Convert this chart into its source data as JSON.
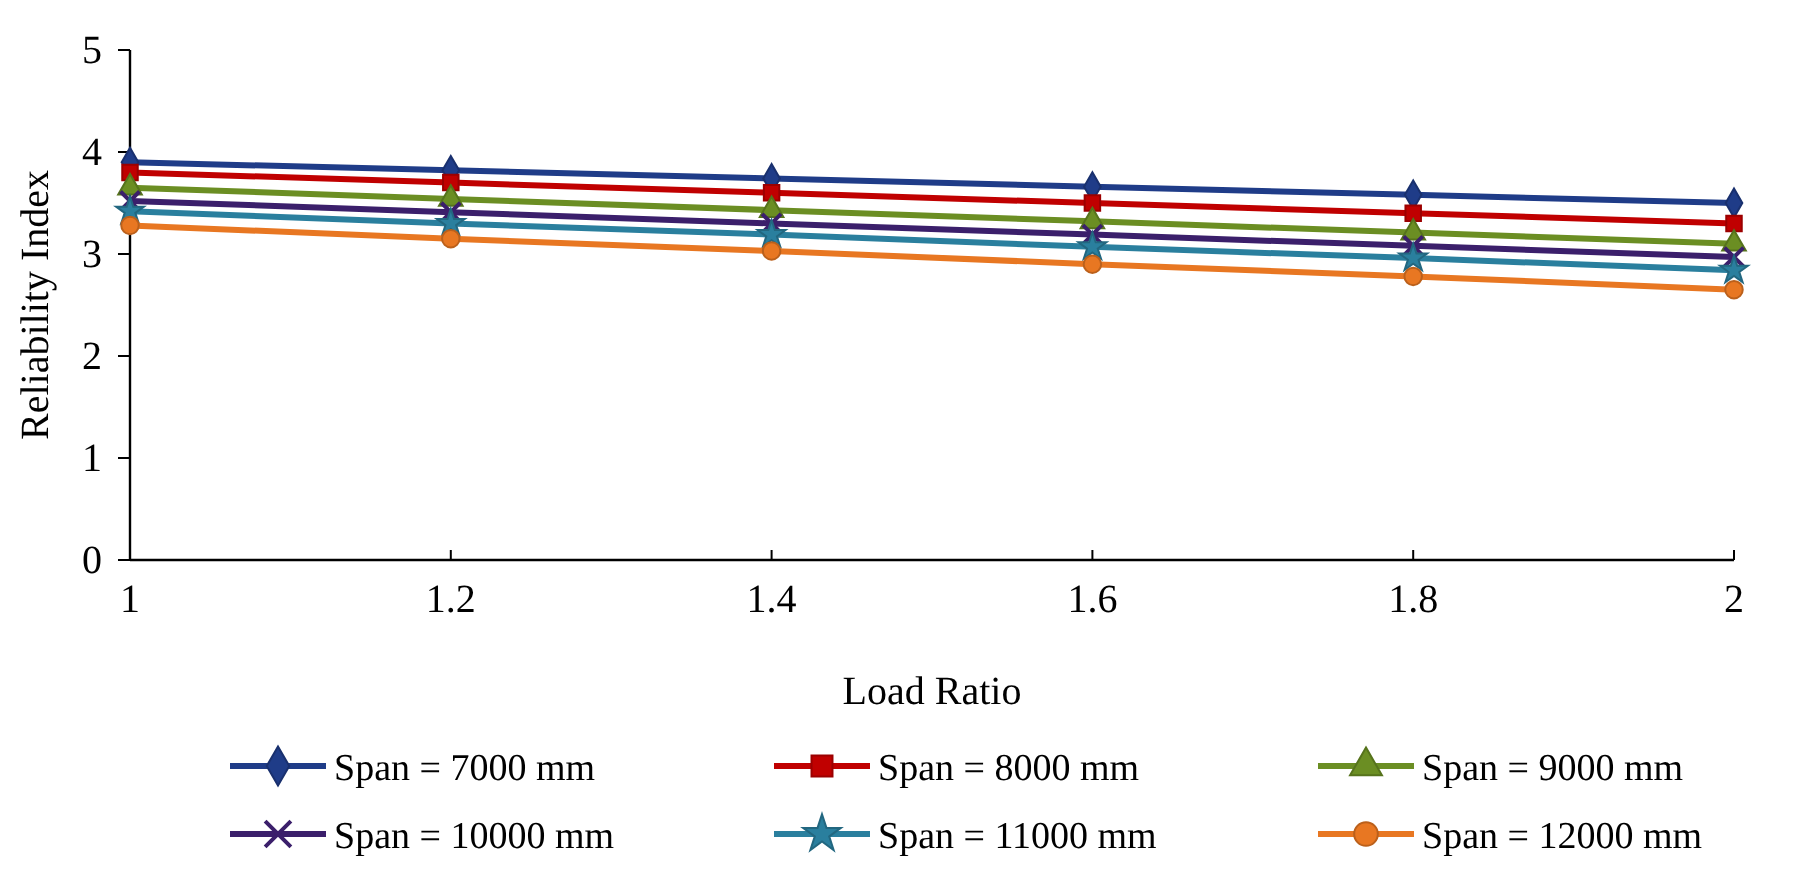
{
  "chart_data": {
    "type": "line",
    "xlabel": "Load Ratio",
    "ylabel": "Reliability Index",
    "x": [
      1,
      1.2,
      1.4,
      1.6,
      1.8,
      2
    ],
    "xlim": [
      1,
      2
    ],
    "xticks": [
      1,
      1.2,
      1.4,
      1.6,
      1.8,
      2
    ],
    "ylim": [
      0,
      5
    ],
    "yticks": [
      0,
      1,
      2,
      3,
      4,
      5
    ],
    "grid": false,
    "legend": "bottom",
    "series": [
      {
        "name": "Span = 7000 mm",
        "color": "#1f3c88",
        "marker": "diamond",
        "values": [
          3.9,
          3.82,
          3.74,
          3.66,
          3.58,
          3.5
        ]
      },
      {
        "name": "Span = 8000 mm",
        "color": "#c00000",
        "marker": "square",
        "values": [
          3.8,
          3.7,
          3.6,
          3.5,
          3.4,
          3.3
        ]
      },
      {
        "name": "Span = 9000 mm",
        "color": "#6b8e23",
        "marker": "triangle",
        "values": [
          3.65,
          3.54,
          3.43,
          3.32,
          3.21,
          3.1
        ]
      },
      {
        "name": "Span = 10000 mm",
        "color": "#3b1f6b",
        "marker": "cross",
        "values": [
          3.52,
          3.41,
          3.3,
          3.19,
          3.08,
          2.97
        ]
      },
      {
        "name": "Span = 11000 mm",
        "color": "#2a7f9e",
        "marker": "star",
        "values": [
          3.42,
          3.3,
          3.19,
          3.07,
          2.96,
          2.84
        ]
      },
      {
        "name": "Span = 12000 mm",
        "color": "#e87722",
        "marker": "circle",
        "values": [
          3.28,
          3.15,
          3.03,
          2.9,
          2.78,
          2.65
        ]
      }
    ]
  }
}
